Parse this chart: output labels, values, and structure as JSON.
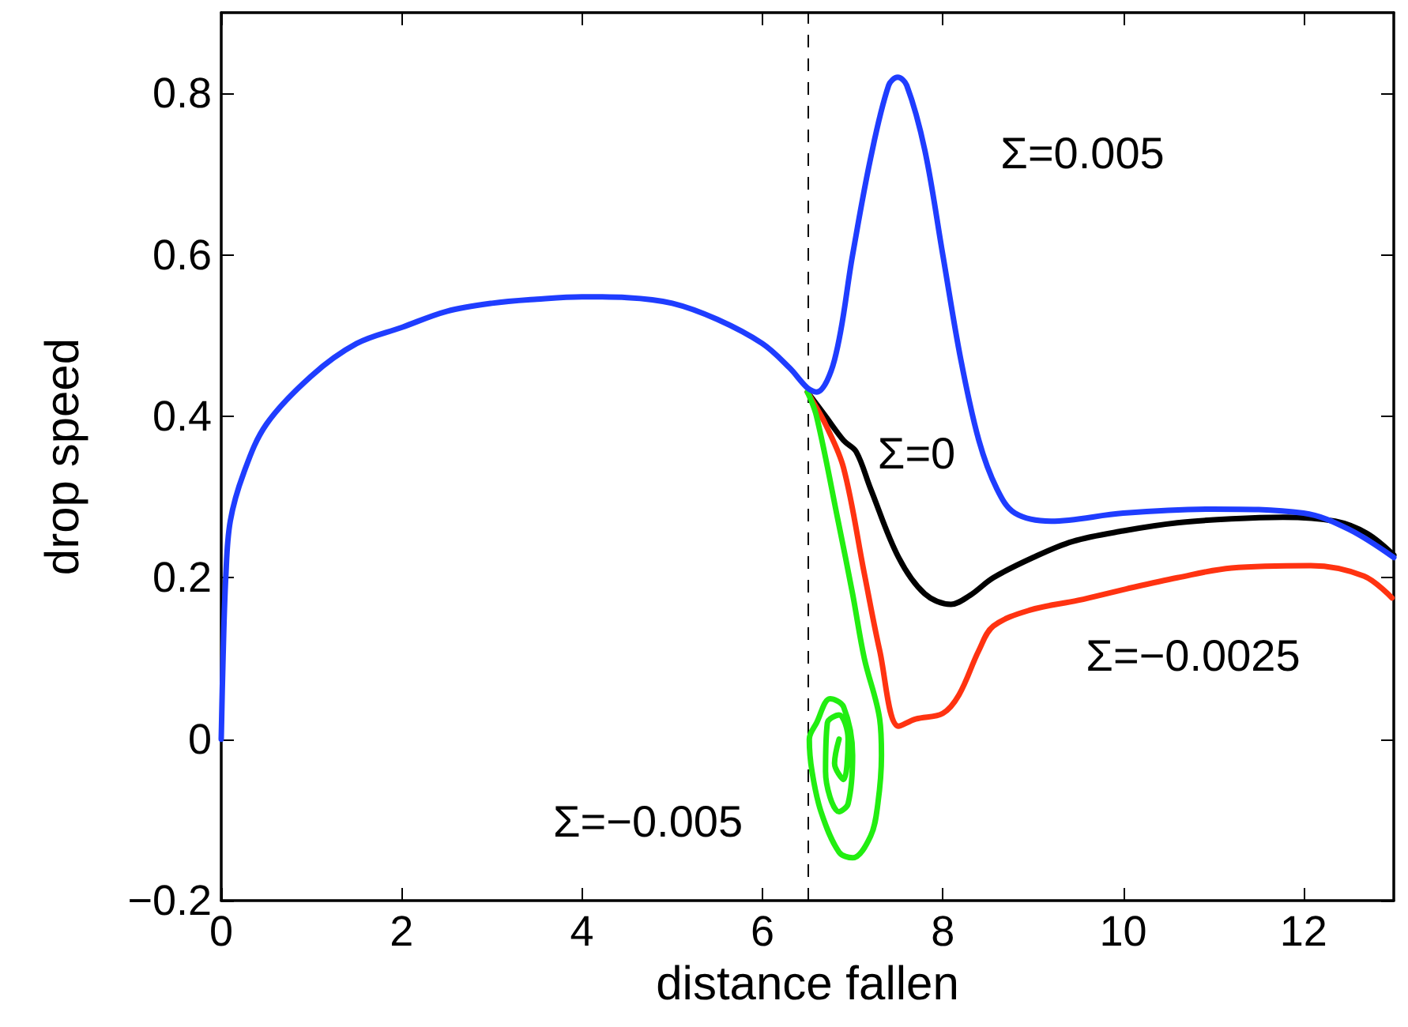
{
  "chart_data": {
    "type": "line",
    "xlabel": "distance fallen",
    "ylabel": "drop speed",
    "xlim": [
      0,
      13
    ],
    "xticks": [
      0,
      2,
      4,
      6,
      8,
      10,
      12
    ],
    "ylim": [
      -0.2,
      0.9
    ],
    "yticks": [
      -0.2,
      0,
      0.2,
      0.4,
      0.6,
      0.8
    ],
    "grid": false,
    "legend": false,
    "marker": "none",
    "line_style": "solid",
    "series": [
      {
        "name": "Σ=0",
        "color": "#000000",
        "x": [
          6.5,
          6.7,
          6.9,
          7.04,
          7.2,
          7.51,
          7.8,
          8.09,
          8.3,
          8.56,
          9,
          9.44,
          10,
          10.6,
          11.2,
          11.77,
          12.35,
          12.7,
          13
        ],
        "values": [
          0.43,
          0.4,
          0.37,
          0.356,
          0.31,
          0.225,
          0.18,
          0.167,
          0.178,
          0.2,
          0.225,
          0.245,
          0.258,
          0.268,
          0.273,
          0.275,
          0.27,
          0.255,
          0.228
        ]
      },
      {
        "name": "Σ=−0.0025",
        "color": "#ff3311",
        "x": [
          6.5,
          6.55,
          6.7,
          6.9,
          7.13,
          7.3,
          7.51,
          7.7,
          8,
          8.18,
          8.4,
          8.56,
          8.97,
          9.5,
          10.03,
          10.6,
          11.2,
          12.08,
          12.67,
          12.98
        ],
        "values": [
          0.43,
          0.42,
          0.39,
          0.336,
          0.205,
          0.11,
          0.016,
          0.025,
          0.032,
          0.055,
          0.11,
          0.14,
          0.16,
          0.172,
          0.186,
          0.2,
          0.212,
          0.215,
          0.202,
          0.175
        ]
      },
      {
        "name": "Σ=−0.005",
        "color": "#22ee11",
        "x": [
          6.5,
          6.6,
          6.84,
          7.0,
          7.13,
          7.3,
          7.32,
          7.28,
          7.2,
          7.0,
          6.85,
          6.65,
          6.55,
          6.52,
          6.6,
          6.75,
          6.9,
          7.0,
          6.95,
          6.85,
          6.7,
          6.72,
          6.85,
          6.95,
          6.9,
          6.8,
          6.85
        ],
        "values": [
          0.43,
          0.4,
          0.27,
          0.18,
          0.1,
          0.025,
          -0.02,
          -0.08,
          -0.12,
          -0.147,
          -0.14,
          -0.09,
          -0.04,
          0.0,
          0.02,
          0.05,
          0.04,
          -0.02,
          -0.08,
          -0.09,
          -0.04,
          0.02,
          0.03,
          0.0,
          -0.05,
          -0.03,
          0.0
        ]
      },
      {
        "name": "Σ=0.005",
        "color": "#1f3dff",
        "x": [
          0,
          0.02,
          0.05,
          0.1,
          0.25,
          0.5,
          1,
          1.5,
          2,
          2.5,
          3,
          3.5,
          4,
          4.5,
          5,
          5.5,
          6,
          6.3,
          6.5,
          6.6,
          6.8,
          7.0,
          7.2,
          7.4,
          7.5,
          7.6,
          7.8,
          8.0,
          8.2,
          8.4,
          8.6,
          8.8,
          9.2,
          10,
          11,
          12,
          12.5,
          13
        ],
        "values": [
          0,
          0.1,
          0.2,
          0.27,
          0.33,
          0.39,
          0.45,
          0.49,
          0.51,
          0.53,
          0.54,
          0.545,
          0.548,
          0.547,
          0.54,
          0.52,
          0.49,
          0.46,
          0.435,
          0.43,
          0.47,
          0.6,
          0.72,
          0.81,
          0.82,
          0.81,
          0.73,
          0.6,
          0.47,
          0.37,
          0.31,
          0.28,
          0.27,
          0.28,
          0.285,
          0.28,
          0.26,
          0.225
        ]
      }
    ],
    "ref_lines": [
      {
        "axis": "x",
        "value": 6.5,
        "color": "#000000",
        "line_style": "dashed"
      }
    ]
  }
}
